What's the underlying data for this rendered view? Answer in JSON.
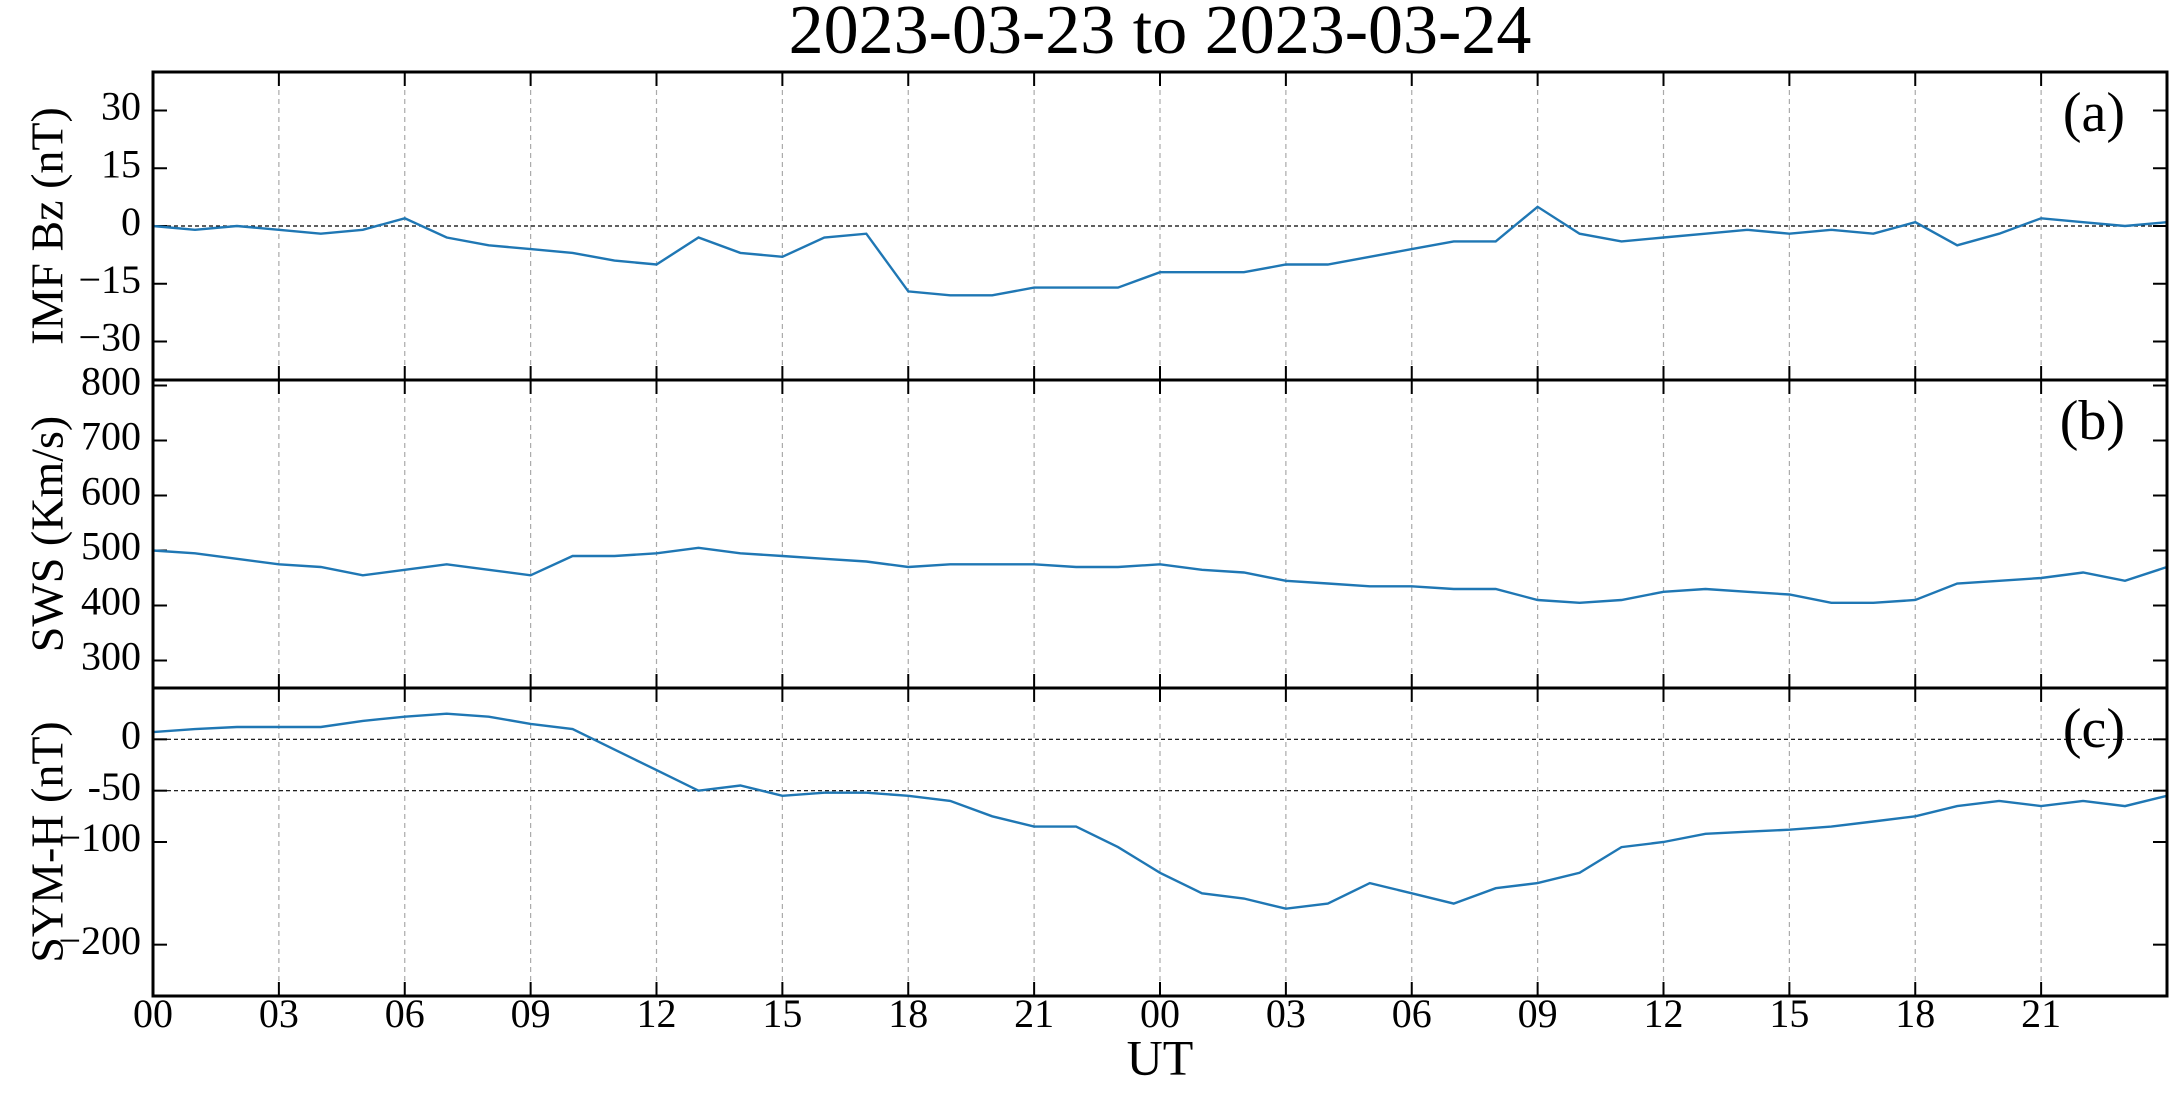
{
  "chart_data": [
    {
      "type": "line",
      "title": "2023-03-23  to  2023-03-24",
      "ylabel": "IMF Bz (nT)",
      "panel_label": "(a)",
      "x": [
        0,
        1,
        2,
        3,
        4,
        5,
        6,
        7,
        8,
        9,
        10,
        11,
        12,
        13,
        14,
        15,
        16,
        17,
        18,
        19,
        20,
        21,
        22,
        23,
        24,
        25,
        26,
        27,
        28,
        29,
        30,
        31,
        32,
        33,
        34,
        35,
        36,
        37,
        38,
        39,
        40,
        41,
        42,
        43,
        44,
        45,
        46,
        47,
        48
      ],
      "series": [
        {
          "color": "#1f77b4",
          "values": [
            0,
            -1,
            0,
            -1,
            -2,
            -1,
            2,
            -3,
            -5,
            -6,
            -7,
            -9,
            -10,
            -3,
            -7,
            -8,
            -3,
            -2,
            -17,
            -18,
            -18,
            -16,
            -16,
            -16,
            -12,
            -12,
            -12,
            -10,
            -10,
            -8,
            -6,
            -4,
            -4,
            5,
            -2,
            -4,
            -3,
            -2,
            -1,
            -2,
            -1,
            -2,
            1,
            -5,
            -2,
            2,
            1,
            0,
            1
          ]
        }
      ],
      "ylim": [
        -40,
        40
      ],
      "yticks": [
        {
          "value": -30,
          "label": "−30"
        },
        {
          "value": -15,
          "label": "−15"
        },
        0,
        15,
        30
      ],
      "hlines": [
        0
      ]
    },
    {
      "type": "line",
      "ylabel": "SWS (Km/s)",
      "panel_label": "(b)",
      "x": [
        0,
        1,
        2,
        3,
        4,
        5,
        6,
        7,
        8,
        9,
        10,
        11,
        12,
        13,
        14,
        15,
        16,
        17,
        18,
        19,
        20,
        21,
        22,
        23,
        24,
        25,
        26,
        27,
        28,
        29,
        30,
        31,
        32,
        33,
        34,
        35,
        36,
        37,
        38,
        39,
        40,
        41,
        42,
        43,
        44,
        45,
        46,
        47,
        48
      ],
      "series": [
        {
          "color": "#1f77b4",
          "values": [
            500,
            495,
            485,
            475,
            470,
            455,
            465,
            475,
            465,
            455,
            490,
            490,
            495,
            505,
            495,
            490,
            485,
            480,
            470,
            475,
            475,
            475,
            470,
            470,
            475,
            465,
            460,
            445,
            440,
            435,
            435,
            430,
            430,
            410,
            405,
            410,
            425,
            430,
            425,
            420,
            405,
            405,
            410,
            440,
            445,
            450,
            460,
            445,
            470
          ]
        }
      ],
      "ylim": [
        250,
        810
      ],
      "yticks": [
        300,
        400,
        500,
        600,
        700,
        800
      ],
      "hlines": []
    },
    {
      "type": "line",
      "ylabel": "SYM-H (nT)",
      "panel_label": "(c)",
      "xlabel": "UT",
      "x": [
        0,
        1,
        2,
        3,
        4,
        5,
        6,
        7,
        8,
        9,
        10,
        11,
        12,
        13,
        14,
        15,
        16,
        17,
        18,
        19,
        20,
        21,
        22,
        23,
        24,
        25,
        26,
        27,
        28,
        29,
        30,
        31,
        32,
        33,
        34,
        35,
        36,
        37,
        38,
        39,
        40,
        41,
        42,
        43,
        44,
        45,
        46,
        47,
        48
      ],
      "series": [
        {
          "color": "#1f77b4",
          "values": [
            7,
            10,
            12,
            12,
            12,
            18,
            22,
            25,
            22,
            15,
            10,
            -10,
            -30,
            -50,
            -45,
            -55,
            -52,
            -52,
            -55,
            -60,
            -75,
            -85,
            -85,
            -105,
            -130,
            -150,
            -155,
            -165,
            -160,
            -140,
            -150,
            -160,
            -145,
            -140,
            -130,
            -105,
            -100,
            -92,
            -90,
            -88,
            -85,
            -80,
            -75,
            -65,
            -60,
            -65,
            -60,
            -65,
            -55
          ]
        }
      ],
      "ylim": [
        -250,
        50
      ],
      "yticks": [
        {
          "value": -200,
          "label": "−200"
        },
        {
          "value": -100,
          "label": "−100"
        },
        -50,
        0
      ],
      "hlines": [
        0,
        -50
      ],
      "xlim": [
        0,
        48
      ],
      "xticks": [
        {
          "value": 0,
          "label": "00"
        },
        {
          "value": 3,
          "label": "03"
        },
        {
          "value": 6,
          "label": "06"
        },
        {
          "value": 9,
          "label": "09"
        },
        12,
        15,
        18,
        21,
        {
          "value": 24,
          "label": "00"
        },
        {
          "value": 27,
          "label": "03"
        },
        {
          "value": 30,
          "label": "06"
        },
        {
          "value": 33,
          "label": "09"
        },
        {
          "value": 36,
          "label": "12"
        },
        {
          "value": 39,
          "label": "15"
        },
        {
          "value": 42,
          "label": "18"
        },
        {
          "value": 45,
          "label": "21"
        }
      ]
    }
  ]
}
